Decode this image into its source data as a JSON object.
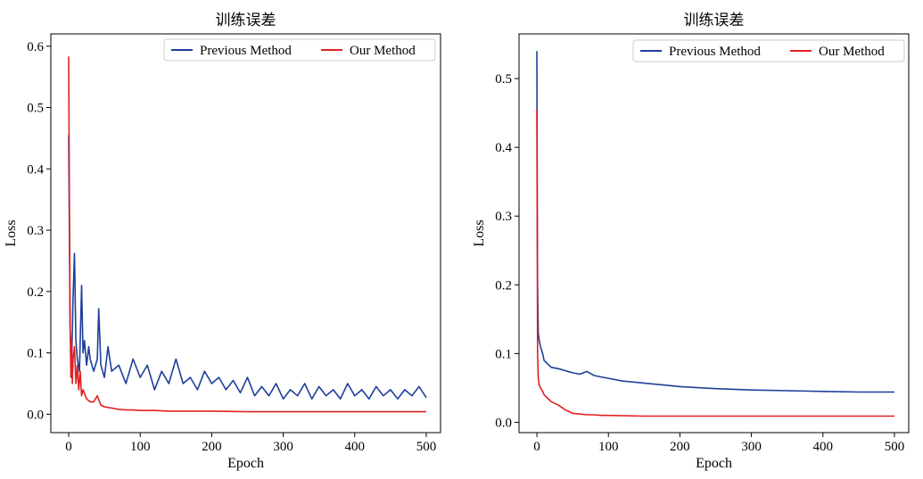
{
  "chart_data": [
    {
      "type": "line",
      "title": "训练误差",
      "xlabel": "Epoch",
      "ylabel": "Loss",
      "xlim": [
        -25,
        520
      ],
      "ylim": [
        -0.03,
        0.62
      ],
      "xticks": [
        0,
        100,
        200,
        300,
        400,
        500
      ],
      "yticks": [
        0.0,
        0.1,
        0.2,
        0.3,
        0.4,
        0.5,
        0.6
      ],
      "ytick_labels": [
        "0.0",
        "0.1",
        "0.2",
        "0.3",
        "0.4",
        "0.5",
        "0.6"
      ],
      "grid": false,
      "legend": "top-right",
      "series": [
        {
          "name": "Previous Method",
          "color": "#1f3f9a",
          "x": [
            0,
            2,
            4,
            6,
            8,
            10,
            12,
            15,
            18,
            20,
            22,
            25,
            28,
            30,
            35,
            40,
            42,
            45,
            50,
            55,
            60,
            70,
            80,
            90,
            100,
            110,
            120,
            130,
            140,
            150,
            160,
            170,
            180,
            190,
            200,
            210,
            220,
            230,
            240,
            250,
            260,
            270,
            280,
            290,
            300,
            310,
            320,
            330,
            340,
            350,
            360,
            370,
            380,
            390,
            400,
            410,
            420,
            430,
            440,
            450,
            460,
            470,
            480,
            490,
            500
          ],
          "y": [
            0.455,
            0.14,
            0.08,
            0.19,
            0.262,
            0.12,
            0.09,
            0.07,
            0.21,
            0.1,
            0.12,
            0.08,
            0.11,
            0.09,
            0.07,
            0.09,
            0.172,
            0.08,
            0.06,
            0.11,
            0.07,
            0.08,
            0.05,
            0.09,
            0.06,
            0.08,
            0.04,
            0.07,
            0.05,
            0.09,
            0.05,
            0.06,
            0.04,
            0.07,
            0.05,
            0.06,
            0.04,
            0.055,
            0.035,
            0.06,
            0.03,
            0.045,
            0.03,
            0.05,
            0.025,
            0.04,
            0.03,
            0.05,
            0.025,
            0.045,
            0.03,
            0.04,
            0.025,
            0.05,
            0.03,
            0.04,
            0.025,
            0.045,
            0.03,
            0.04,
            0.025,
            0.04,
            0.03,
            0.045,
            0.027
          ]
        },
        {
          "name": "Our Method",
          "color": "#e02020",
          "x": [
            0,
            1,
            2,
            3,
            4,
            5,
            6,
            8,
            10,
            12,
            14,
            16,
            18,
            20,
            25,
            30,
            35,
            40,
            45,
            50,
            60,
            70,
            80,
            90,
            100,
            120,
            140,
            160,
            180,
            200,
            250,
            300,
            350,
            400,
            450,
            500
          ],
          "y": [
            0.583,
            0.36,
            0.15,
            0.06,
            0.12,
            0.05,
            0.09,
            0.11,
            0.05,
            0.08,
            0.04,
            0.07,
            0.03,
            0.04,
            0.025,
            0.02,
            0.02,
            0.03,
            0.015,
            0.012,
            0.01,
            0.008,
            0.007,
            0.007,
            0.006,
            0.006,
            0.005,
            0.005,
            0.005,
            0.005,
            0.004,
            0.004,
            0.004,
            0.004,
            0.004,
            0.004
          ]
        }
      ]
    },
    {
      "type": "line",
      "title": "训练误差",
      "xlabel": "Epoch",
      "ylabel": "Loss",
      "xlim": [
        -25,
        520
      ],
      "ylim": [
        -0.015,
        0.565
      ],
      "xticks": [
        0,
        100,
        200,
        300,
        400,
        500
      ],
      "yticks": [
        0.0,
        0.1,
        0.2,
        0.3,
        0.4,
        0.5
      ],
      "ytick_labels": [
        "0.0",
        "0.1",
        "0.2",
        "0.3",
        "0.4",
        "0.5"
      ],
      "grid": false,
      "legend": "top-right",
      "series": [
        {
          "name": "Previous Method",
          "color": "#1f3f9a",
          "x": [
            0,
            1,
            2,
            3,
            5,
            8,
            10,
            15,
            20,
            30,
            40,
            50,
            60,
            70,
            80,
            90,
            100,
            120,
            140,
            160,
            180,
            200,
            250,
            300,
            350,
            400,
            450,
            500
          ],
          "y": [
            0.54,
            0.2,
            0.13,
            0.12,
            0.11,
            0.1,
            0.09,
            0.085,
            0.08,
            0.078,
            0.075,
            0.072,
            0.07,
            0.074,
            0.068,
            0.066,
            0.064,
            0.06,
            0.058,
            0.056,
            0.054,
            0.052,
            0.049,
            0.047,
            0.046,
            0.045,
            0.044,
            0.044
          ]
        },
        {
          "name": "Our Method",
          "color": "#e02020",
          "x": [
            0,
            1,
            2,
            3,
            5,
            8,
            10,
            15,
            20,
            30,
            40,
            50,
            60,
            70,
            80,
            90,
            100,
            150,
            200,
            250,
            300,
            350,
            400,
            450,
            500
          ],
          "y": [
            0.455,
            0.1,
            0.065,
            0.055,
            0.05,
            0.045,
            0.04,
            0.035,
            0.03,
            0.025,
            0.018,
            0.013,
            0.012,
            0.011,
            0.011,
            0.01,
            0.01,
            0.009,
            0.009,
            0.009,
            0.009,
            0.009,
            0.009,
            0.009,
            0.009
          ]
        }
      ]
    }
  ]
}
